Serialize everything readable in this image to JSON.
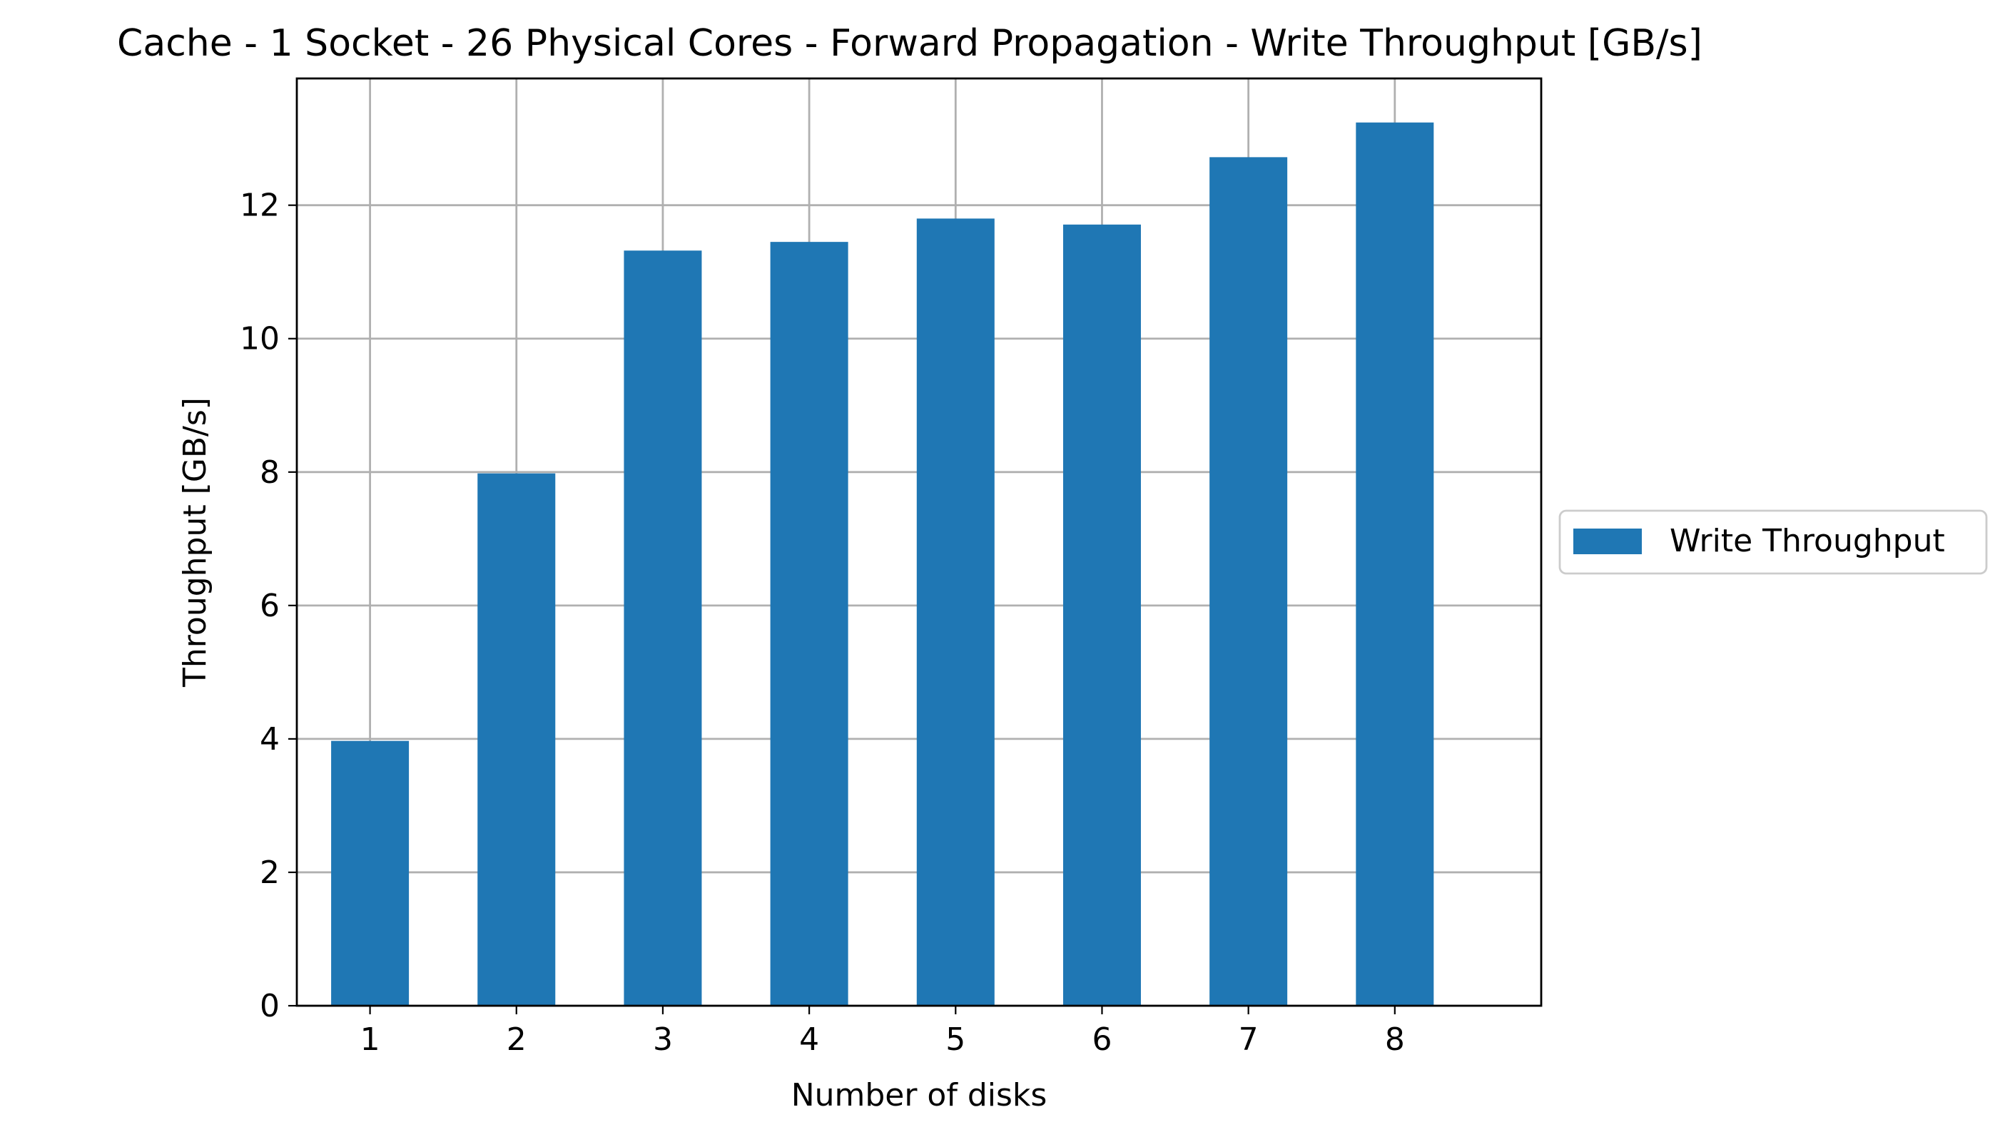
{
  "chart_data": {
    "type": "bar",
    "title": "Cache - 1 Socket - 26 Physical Cores - Forward Propagation - Write Throughput [GB/s]",
    "xlabel": "Number of disks",
    "ylabel": "Throughput [GB/s]",
    "categories": [
      "1",
      "2",
      "3",
      "4",
      "5",
      "6",
      "7",
      "8"
    ],
    "series": [
      {
        "name": "Write Throughput",
        "color": "#1f77b4",
        "values": [
          3.97,
          7.98,
          11.32,
          11.45,
          11.8,
          11.71,
          12.72,
          13.24
        ]
      }
    ],
    "ylim": [
      0,
      13.9
    ],
    "yticks": [
      0,
      2,
      4,
      6,
      8,
      10,
      12
    ],
    "grid": true,
    "legend_position": "center-right-outside"
  }
}
